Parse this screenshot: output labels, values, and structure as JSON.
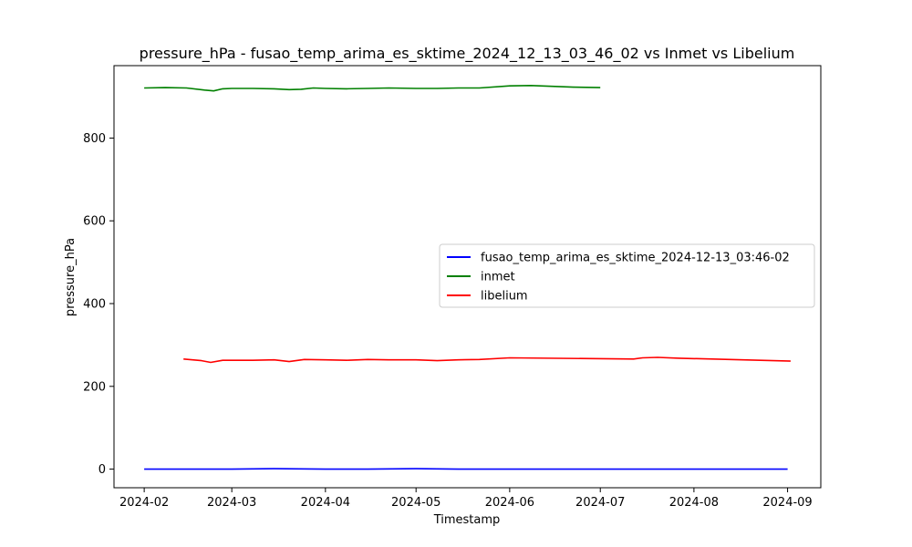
{
  "chart_data": {
    "type": "line",
    "title": "pressure_hPa - fusao_temp_arima_es_sktime_2024_12_13_03_46_02 vs Inmet vs Libelium",
    "xlabel": "Timestamp",
    "ylabel": "pressure_hPa",
    "xlim": [
      "2024-01-22",
      "2024-09-12"
    ],
    "ylim": [
      -45,
      975
    ],
    "x_ticks": [
      "2024-02",
      "2024-03",
      "2024-04",
      "2024-05",
      "2024-06",
      "2024-07",
      "2024-08",
      "2024-09"
    ],
    "y_ticks": [
      0,
      200,
      400,
      600,
      800
    ],
    "grid": false,
    "legend_position": "center-right",
    "series": [
      {
        "name": "fusao_temp_arima_es_sktime_2024-12-13_03:46-02",
        "color": "#0000ff",
        "points": [
          [
            "2024-02-01",
            0
          ],
          [
            "2024-02-15",
            0
          ],
          [
            "2024-03-01",
            0
          ],
          [
            "2024-03-15",
            1
          ],
          [
            "2024-04-01",
            0
          ],
          [
            "2024-04-15",
            0
          ],
          [
            "2024-05-01",
            1
          ],
          [
            "2024-05-15",
            0
          ],
          [
            "2024-06-01",
            0
          ],
          [
            "2024-06-15",
            0
          ],
          [
            "2024-07-01",
            0
          ],
          [
            "2024-07-15",
            0
          ],
          [
            "2024-08-01",
            0
          ],
          [
            "2024-08-15",
            0
          ],
          [
            "2024-09-01",
            0
          ]
        ]
      },
      {
        "name": "inmet",
        "color": "#008000",
        "points": [
          [
            "2024-02-01",
            921
          ],
          [
            "2024-02-08",
            922
          ],
          [
            "2024-02-15",
            921
          ],
          [
            "2024-02-21",
            916
          ],
          [
            "2024-02-24",
            914
          ],
          [
            "2024-02-27",
            919
          ],
          [
            "2024-03-01",
            920
          ],
          [
            "2024-03-08",
            920
          ],
          [
            "2024-03-15",
            919
          ],
          [
            "2024-03-20",
            917
          ],
          [
            "2024-03-24",
            918
          ],
          [
            "2024-03-28",
            921
          ],
          [
            "2024-04-01",
            920
          ],
          [
            "2024-04-08",
            919
          ],
          [
            "2024-04-15",
            920
          ],
          [
            "2024-04-22",
            921
          ],
          [
            "2024-05-01",
            920
          ],
          [
            "2024-05-08",
            920
          ],
          [
            "2024-05-15",
            921
          ],
          [
            "2024-05-22",
            921
          ],
          [
            "2024-06-01",
            926
          ],
          [
            "2024-06-08",
            927
          ],
          [
            "2024-06-15",
            925
          ],
          [
            "2024-06-22",
            923
          ],
          [
            "2024-07-01",
            922
          ]
        ]
      },
      {
        "name": "libelium",
        "color": "#ff0000",
        "points": [
          [
            "2024-02-14",
            266
          ],
          [
            "2024-02-20",
            262
          ],
          [
            "2024-02-23",
            258
          ],
          [
            "2024-02-27",
            263
          ],
          [
            "2024-03-01",
            263
          ],
          [
            "2024-03-08",
            263
          ],
          [
            "2024-03-15",
            264
          ],
          [
            "2024-03-20",
            260
          ],
          [
            "2024-03-25",
            265
          ],
          [
            "2024-04-01",
            264
          ],
          [
            "2024-04-08",
            263
          ],
          [
            "2024-04-15",
            265
          ],
          [
            "2024-04-22",
            264
          ],
          [
            "2024-05-01",
            264
          ],
          [
            "2024-05-08",
            262
          ],
          [
            "2024-05-15",
            264
          ],
          [
            "2024-05-22",
            265
          ],
          [
            "2024-06-01",
            269
          ],
          [
            "2024-07-12",
            266
          ],
          [
            "2024-07-15",
            269
          ],
          [
            "2024-07-20",
            270
          ],
          [
            "2024-07-27",
            268
          ],
          [
            "2024-09-02",
            261
          ]
        ]
      }
    ]
  }
}
